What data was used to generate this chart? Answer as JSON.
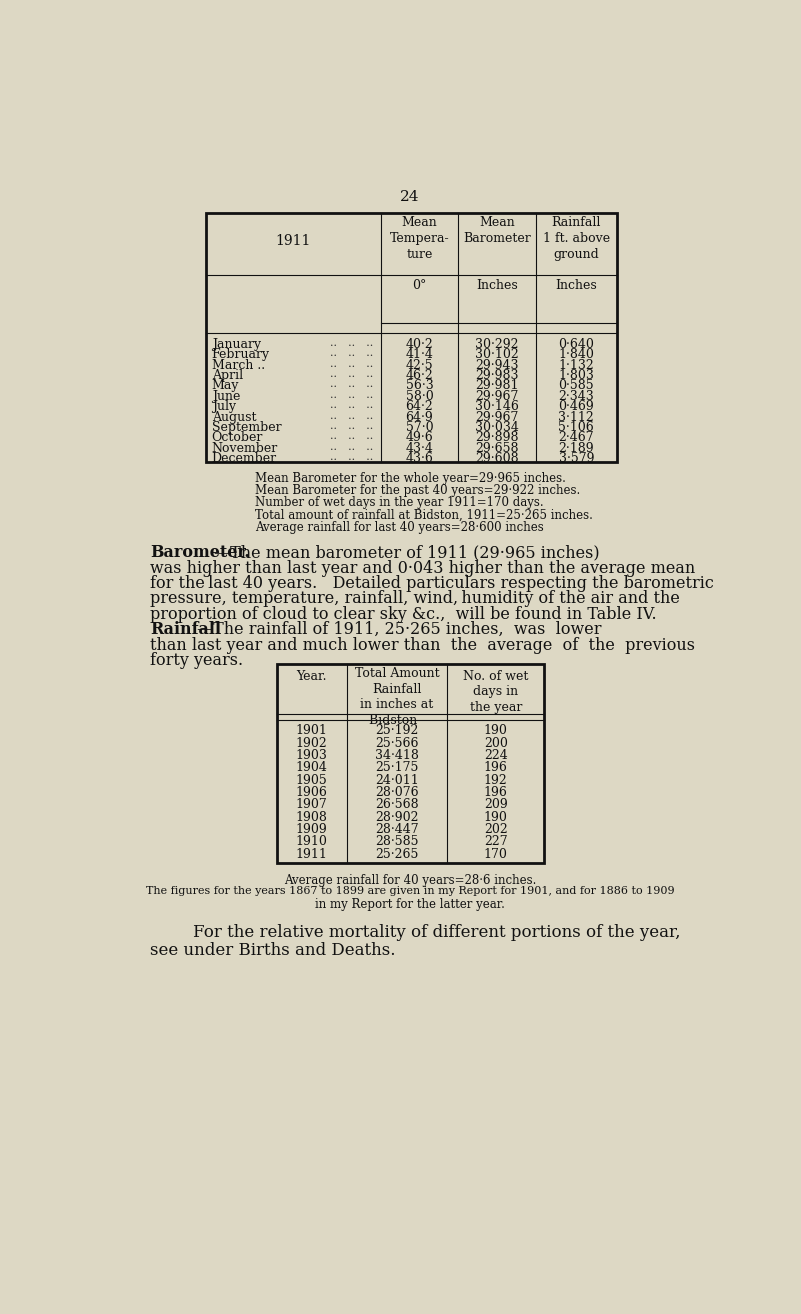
{
  "bg_color": "#ddd8c4",
  "page_number": "24",
  "table1_months": [
    "January",
    "February",
    "March ..",
    "April",
    "May  ..",
    "June  ..",
    "July  ..",
    "August",
    "September",
    "October",
    "November",
    "December"
  ],
  "table1_dots": [
    ".. .. ..",
    ".. .. ..",
    ".. .. ..",
    ".. .. ..",
    ".. .. ..",
    ".. .. ..",
    ".. .. ..",
    ".. .. ..",
    ".. .. ..",
    ".. .. ..",
    ".. .. ..",
    ".. .. .."
  ],
  "table1_temp": [
    "40·2",
    "41·4",
    "42·5",
    "46·2",
    "56·3",
    "58·0",
    "64·2",
    "64·9",
    "57·0",
    "49·6",
    "43·4",
    "43·6"
  ],
  "table1_baro": [
    "30·292",
    "30·102",
    "29·943",
    "29·983",
    "29·981",
    "29·967",
    "30·146",
    "29·967",
    "30·034",
    "29·898",
    "29·658",
    "29·608"
  ],
  "table1_rain": [
    "0·640",
    "1·840",
    "1·132",
    "1·803",
    "0·585",
    "2·343",
    "0·469",
    "3·112",
    "5·106",
    "2·467",
    "2·189",
    "3·579"
  ],
  "summary_lines": [
    "Mean Barometer for the whole year=29·965 inches.",
    "Mean Barometer for the past 40 years=29·922 inches.",
    "Number of wet days in the year 1911=170 days.",
    "Total amount of rainfall at Bidston, 1911=25·265 inches.",
    "Average rainfall for last 40 years=28·600 inches"
  ],
  "table2_years": [
    "1901",
    "1902",
    "1903",
    "1904",
    "1905",
    "1906",
    "1907",
    "1908",
    "1909",
    "1910",
    "1911"
  ],
  "table2_rainfall": [
    "25·192",
    "25·566",
    "34·418",
    "25·175",
    "24·011",
    "28·076",
    "26·568",
    "28·902",
    "28·447",
    "28·585",
    "25·265"
  ],
  "table2_wetdays": [
    "190",
    "200",
    "224",
    "196",
    "192",
    "196",
    "209",
    "190",
    "202",
    "227",
    "170"
  ]
}
